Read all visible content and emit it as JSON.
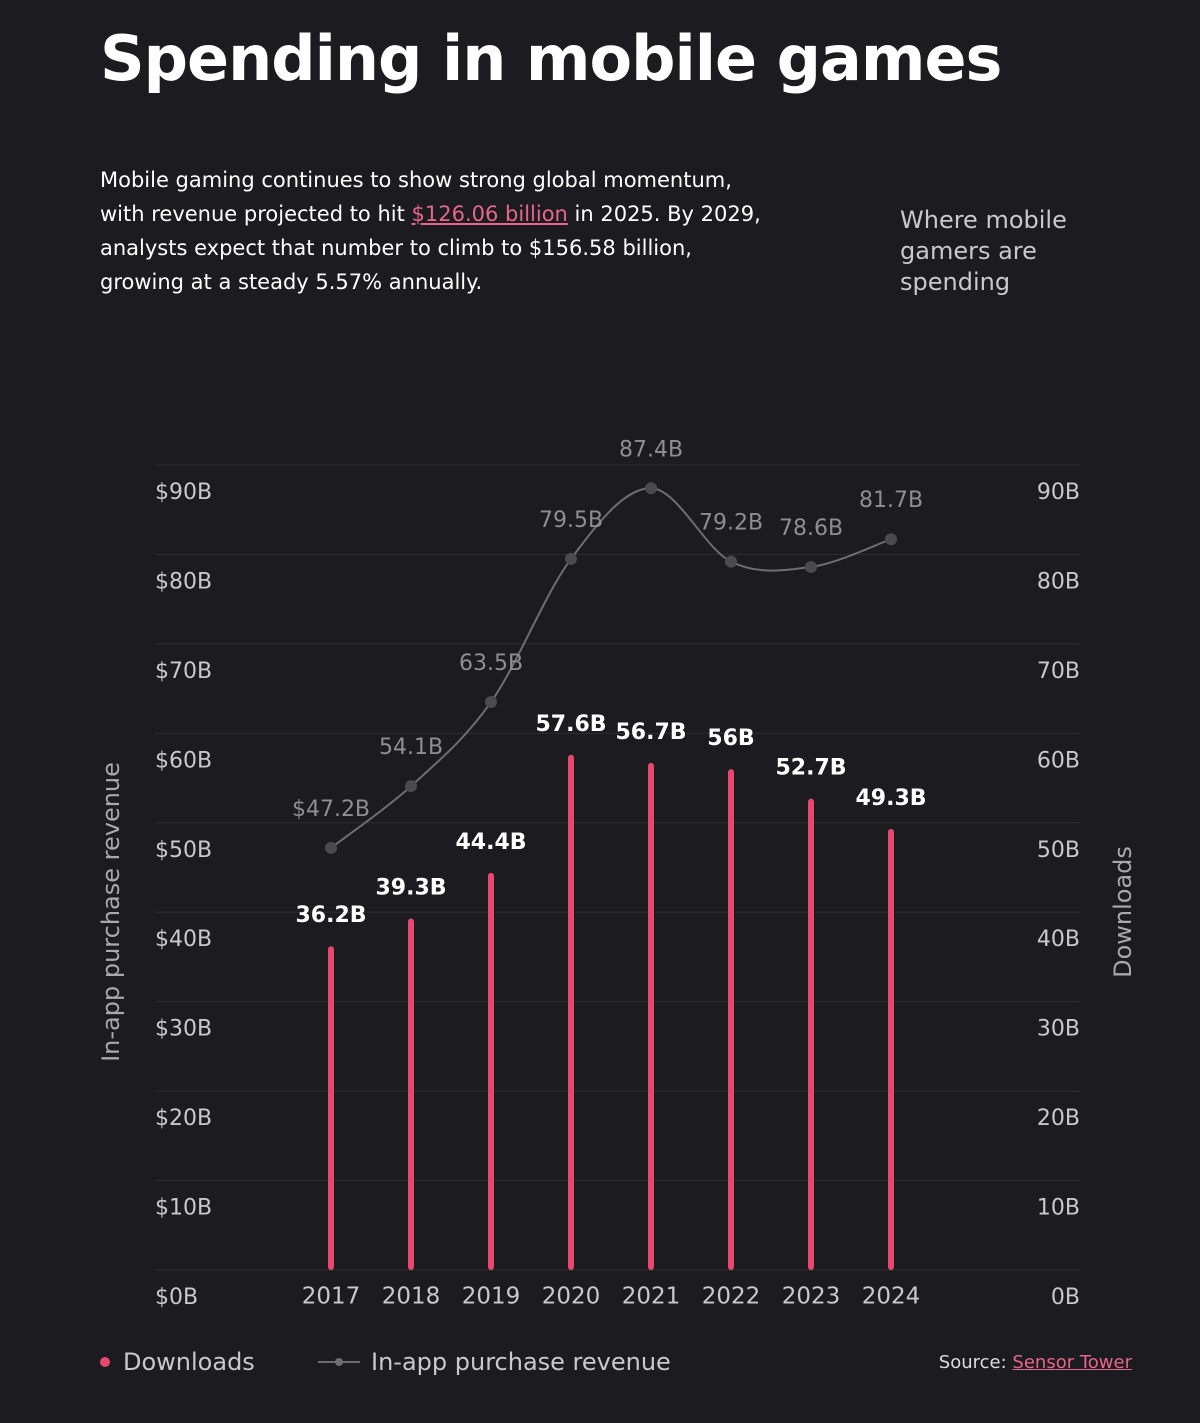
{
  "chart_data": {
    "type": "bar-line",
    "title": "Spending in mobile games",
    "description": {
      "before": "Mobile gaming continues to show strong global momentum, with revenue projected to hit ",
      "link": "$126.06 billion",
      "after": " in 2025. By 2029, analysts expect that number to climb to $156.58 billion, growing at a steady 5.57% annually."
    },
    "side_note": "Where mobile gamers are spending",
    "y_label": "In-app purchase revenue",
    "y2_label": "Downloads",
    "categories": [
      "2017",
      "2018",
      "2019",
      "2020",
      "2021",
      "2022",
      "2023",
      "2024"
    ],
    "series": [
      {
        "name": "Downloads",
        "type": "bar",
        "axis": "y2",
        "color": "#e8476f",
        "values": [
          36.2,
          39.3,
          44.4,
          57.6,
          56.7,
          56,
          52.7,
          49.3
        ],
        "value_labels": [
          "36.2B",
          "39.3B",
          "44.4B",
          "57.6B",
          "56.7B",
          "56B",
          "52.7B",
          "49.3B"
        ]
      },
      {
        "name": "In-app purchase revenue",
        "type": "line",
        "color": "#6e6e72",
        "values": [
          47.2,
          54.1,
          63.5,
          79.5,
          87.4,
          79.2,
          78.6,
          81.7
        ],
        "value_labels": [
          "$47.2B",
          "54.1B",
          "63.5B",
          "79.5B",
          "87.4B",
          "79.2B",
          "78.6B",
          "81.7B"
        ]
      }
    ],
    "ylim": [
      0,
      90
    ],
    "yticks": [
      {
        "value": 0,
        "label": "$0B"
      },
      {
        "value": 10,
        "label": "$10B"
      },
      {
        "value": 20,
        "label": "$20B"
      },
      {
        "value": 30,
        "label": "$30B"
      },
      {
        "value": 40,
        "label": "$40B"
      },
      {
        "value": 50,
        "label": "$50B"
      },
      {
        "value": 60,
        "label": "$60B"
      },
      {
        "value": 70,
        "label": "$70B"
      },
      {
        "value": 80,
        "label": "$80B"
      },
      {
        "value": 90,
        "label": "$90B"
      }
    ],
    "y2lim": [
      0,
      90
    ],
    "y2ticks": [
      {
        "value": 0,
        "label": "0B"
      },
      {
        "value": 10,
        "label": "10B"
      },
      {
        "value": 20,
        "label": "20B"
      },
      {
        "value": 30,
        "label": "30B"
      },
      {
        "value": 40,
        "label": "40B"
      },
      {
        "value": 50,
        "label": "50B"
      },
      {
        "value": 60,
        "label": "60B"
      },
      {
        "value": 70,
        "label": "70B"
      },
      {
        "value": 80,
        "label": "80B"
      },
      {
        "value": 90,
        "label": "90B"
      }
    ],
    "grid": true,
    "source_label": "Source:",
    "source": "Sensor Tower"
  }
}
